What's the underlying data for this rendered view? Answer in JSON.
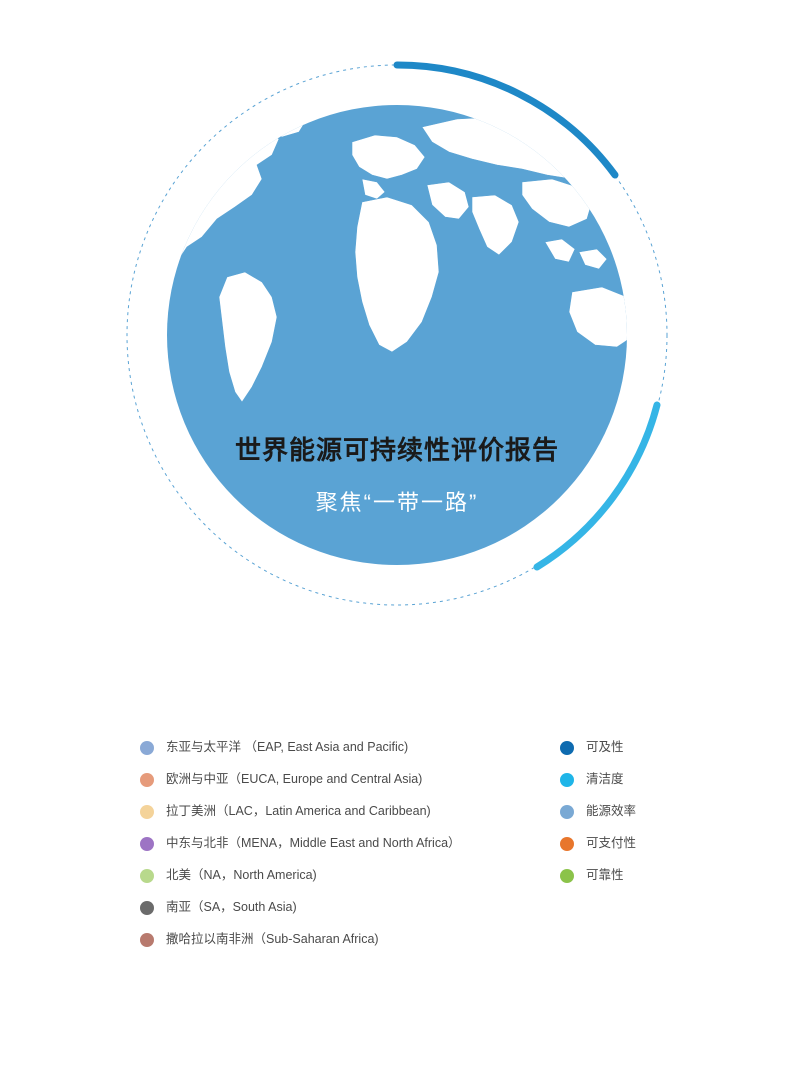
{
  "globe": {
    "title": "世界能源可持续性评价报告",
    "subtitle": "聚焦“一带一路”",
    "globe_color": "#5aa3d4",
    "map_fill": "#ffffff",
    "map_stroke": "#5aa3d4",
    "ring_dash_color": "#5aa3d4",
    "ring_arc_color_top": "#1e88c7",
    "ring_arc_color_bottom": "#35b5e6",
    "title_color": "#1a1a1a",
    "title_fontsize": 26,
    "subtitle_color": "#ffffff",
    "subtitle_fontsize": 22
  },
  "legend": {
    "regions": [
      {
        "label": "东亚与太平洋 （EAP, East Asia and Pacific)",
        "color": "#8aa9d6"
      },
      {
        "label": "欧洲与中亚（EUCA, Europe and Central Asia)",
        "color": "#e69b7b"
      },
      {
        "label": "拉丁美洲（LAC，Latin America and Caribbean)",
        "color": "#f4d39a"
      },
      {
        "label": "中东与北非（MENA，Middle East and North Africa）",
        "color": "#9d74c4"
      },
      {
        "label": "北美（NA，North America)",
        "color": "#b8d98c"
      },
      {
        "label": "南亚（SA，South Asia)",
        "color": "#6b6b6b"
      },
      {
        "label": "撒哈拉以南非洲（Sub-Saharan Africa)",
        "color": "#b87a6e"
      }
    ],
    "metrics": [
      {
        "label": "可及性",
        "color": "#0e6bb0"
      },
      {
        "label": "清洁度",
        "color": "#1fb5e8"
      },
      {
        "label": "能源效率",
        "color": "#7aa9d4"
      },
      {
        "label": "可支付性",
        "color": "#e8762c"
      },
      {
        "label": "可靠性",
        "color": "#8bc34a"
      }
    ],
    "label_fontsize": 12.5,
    "label_color": "#4a4a4a",
    "dot_size": 14
  }
}
